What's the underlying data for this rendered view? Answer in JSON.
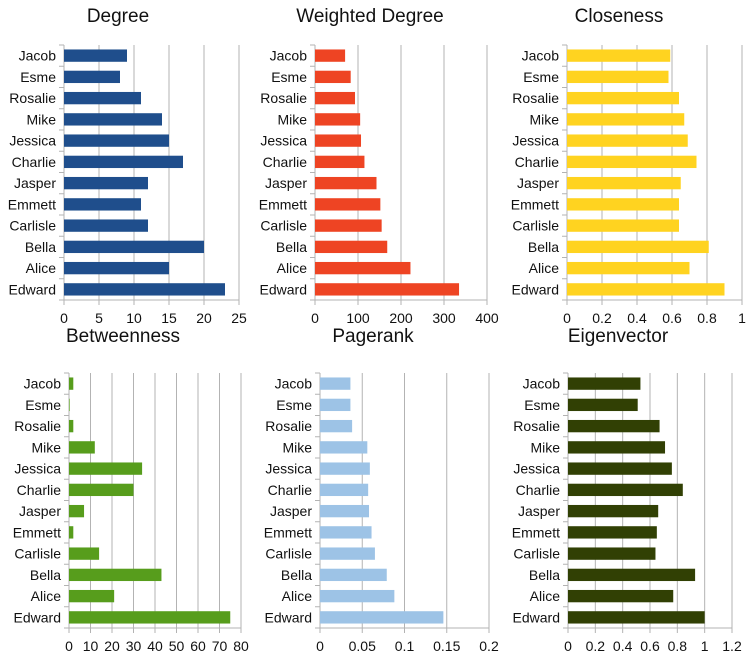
{
  "colors": {
    "degree": "#1f4e8c",
    "weighted_degree": "#ee4423",
    "closeness": "#ffd320",
    "betweenness": "#579d1c",
    "pagerank": "#9dc3e6",
    "eigenvector": "#314004"
  },
  "chart_data": [
    {
      "type": "bar",
      "orientation": "horizontal",
      "title": "Degree",
      "categories": [
        "Jacob",
        "Esme",
        "Rosalie",
        "Mike",
        "Jessica",
        "Charlie",
        "Jasper",
        "Emmett",
        "Carlisle",
        "Bella",
        "Alice",
        "Edward"
      ],
      "values": [
        9,
        8,
        11,
        14,
        15,
        17,
        12,
        11,
        12,
        20,
        15,
        23
      ],
      "xlim": [
        0,
        25
      ],
      "ticks": [
        "0",
        "5",
        "10",
        "15",
        "20",
        "25"
      ],
      "tick_values": [
        0,
        5,
        10,
        15,
        20,
        25
      ],
      "color_key": "degree",
      "grid": true
    },
    {
      "type": "bar",
      "orientation": "horizontal",
      "title": "Weighted Degree",
      "categories": [
        "Jacob",
        "Esme",
        "Rosalie",
        "Mike",
        "Jessica",
        "Charlie",
        "Jasper",
        "Emmett",
        "Carlisle",
        "Bella",
        "Alice",
        "Edward"
      ],
      "values": [
        70,
        83,
        93,
        105,
        107,
        115,
        143,
        152,
        155,
        168,
        222,
        335
      ],
      "xlim": [
        0,
        400
      ],
      "ticks": [
        "0",
        "100",
        "200",
        "300",
        "400"
      ],
      "tick_values": [
        0,
        100,
        200,
        300,
        400
      ],
      "color_key": "weighted_degree",
      "grid": true
    },
    {
      "type": "bar",
      "orientation": "horizontal",
      "title": "Closeness",
      "categories": [
        "Jacob",
        "Esme",
        "Rosalie",
        "Mike",
        "Jessica",
        "Charlie",
        "Jasper",
        "Emmett",
        "Carlisle",
        "Bella",
        "Alice",
        "Edward"
      ],
      "values": [
        0.59,
        0.58,
        0.64,
        0.67,
        0.69,
        0.74,
        0.65,
        0.64,
        0.64,
        0.81,
        0.7,
        0.9
      ],
      "xlim": [
        0,
        1
      ],
      "ticks": [
        "0",
        "0.2",
        "0.4",
        "0.6",
        "0.8",
        "1"
      ],
      "tick_values": [
        0,
        0.2,
        0.4,
        0.6,
        0.8,
        1
      ],
      "color_key": "closeness",
      "grid": true
    },
    {
      "type": "bar",
      "orientation": "horizontal",
      "title": "Betweenness",
      "categories": [
        "Jacob",
        "Esme",
        "Rosalie",
        "Mike",
        "Jessica",
        "Charlie",
        "Jasper",
        "Emmett",
        "Carlisle",
        "Bella",
        "Alice",
        "Edward"
      ],
      "values": [
        2,
        0.3,
        2,
        12,
        34,
        30,
        7,
        2,
        14,
        43,
        21,
        75
      ],
      "xlim": [
        0,
        80
      ],
      "ticks": [
        "0",
        "10",
        "20",
        "30",
        "40",
        "50",
        "60",
        "70",
        "80"
      ],
      "tick_values": [
        0,
        10,
        20,
        30,
        40,
        50,
        60,
        70,
        80
      ],
      "color_key": "betweenness",
      "grid": true
    },
    {
      "type": "bar",
      "orientation": "horizontal",
      "title": "Pagerank",
      "categories": [
        "Jacob",
        "Esme",
        "Rosalie",
        "Mike",
        "Jessica",
        "Charlie",
        "Jasper",
        "Emmett",
        "Carlisle",
        "Bella",
        "Alice",
        "Edward"
      ],
      "values": [
        0.036,
        0.036,
        0.038,
        0.056,
        0.059,
        0.057,
        0.058,
        0.061,
        0.065,
        0.079,
        0.088,
        0.146
      ],
      "xlim": [
        0,
        0.2
      ],
      "ticks": [
        "0",
        "0.05",
        "0.1",
        "0.15",
        "0.2"
      ],
      "tick_values": [
        0,
        0.05,
        0.1,
        0.15,
        0.2
      ],
      "color_key": "pagerank",
      "grid": true
    },
    {
      "type": "bar",
      "orientation": "horizontal",
      "title": "Eigenvector",
      "categories": [
        "Jacob",
        "Esme",
        "Rosalie",
        "Mike",
        "Jessica",
        "Charlie",
        "Jasper",
        "Emmett",
        "Carlisle",
        "Bella",
        "Alice",
        "Edward"
      ],
      "values": [
        0.53,
        0.51,
        0.67,
        0.71,
        0.76,
        0.84,
        0.66,
        0.65,
        0.64,
        0.93,
        0.77,
        1.0
      ],
      "xlim": [
        0,
        1.2
      ],
      "ticks": [
        "0",
        "0.2",
        "0.4",
        "0.6",
        "0.8",
        "1",
        "1.2"
      ],
      "tick_values": [
        0,
        0.2,
        0.4,
        0.6,
        0.8,
        1,
        1.2
      ],
      "color_key": "eigenvector",
      "grid": true
    }
  ]
}
